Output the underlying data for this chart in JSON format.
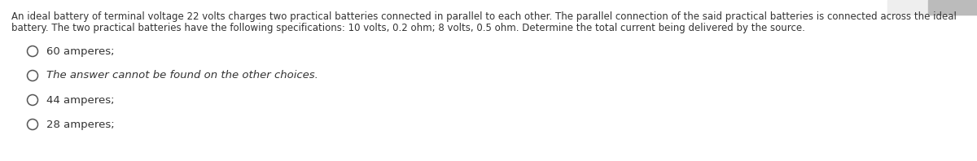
{
  "background_color": "#ffffff",
  "question_text_line1": "An ideal battery of terminal voltage 22 volts charges two practical batteries connected in parallel to each other. The parallel connection of the said practical batteries is connected across the ideal",
  "question_text_line2": "battery. The two practical batteries have the following specifications: 10 volts, 0.2 ohm; 8 volts, 0.5 ohm. Determine the total current being delivered by the source.",
  "choices": [
    "60 amperes;",
    "The answer cannot be found on the other choices.",
    "44 amperes;",
    "28 amperes;"
  ],
  "choice_italic": [
    false,
    true,
    false,
    false
  ],
  "text_color": "#333333",
  "font_size_question": 8.5,
  "font_size_choices": 9.5,
  "circle_color": "#555555",
  "top_right_box_color": "#bbbbbb",
  "top_right_box_color2": "#eeeeee"
}
